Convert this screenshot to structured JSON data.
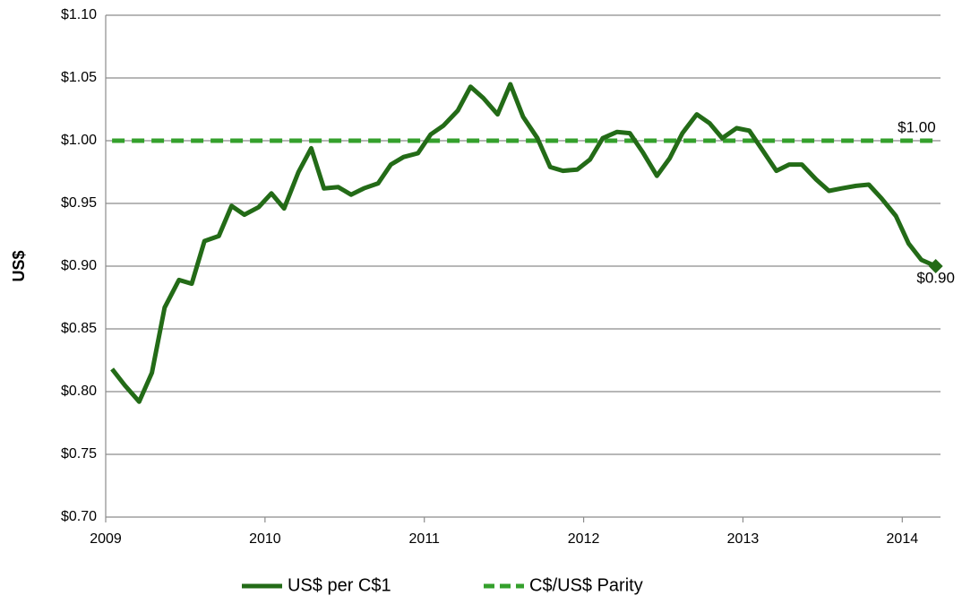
{
  "chart_data": {
    "type": "line",
    "y_label": "US$",
    "x": [
      2009.04,
      2009.12,
      2009.21,
      2009.29,
      2009.37,
      2009.46,
      2009.54,
      2009.62,
      2009.71,
      2009.79,
      2009.87,
      2009.96,
      2010.04,
      2010.12,
      2010.21,
      2010.29,
      2010.37,
      2010.46,
      2010.54,
      2010.62,
      2010.71,
      2010.79,
      2010.87,
      2010.96,
      2011.04,
      2011.12,
      2011.21,
      2011.29,
      2011.37,
      2011.46,
      2011.54,
      2011.62,
      2011.71,
      2011.79,
      2011.87,
      2011.96,
      2012.04,
      2012.12,
      2012.21,
      2012.29,
      2012.37,
      2012.46,
      2012.54,
      2012.62,
      2012.71,
      2012.79,
      2012.87,
      2012.96,
      2013.04,
      2013.12,
      2013.21,
      2013.29,
      2013.37,
      2013.46,
      2013.54,
      2013.62,
      2013.71,
      2013.79,
      2013.87,
      2013.96,
      2014.04,
      2014.12,
      2014.21
    ],
    "series": [
      {
        "name": "US$ per C$1",
        "color": "#236b17",
        "dash": false,
        "end_marker": "diamond",
        "end_label": "$0.90",
        "values": [
          0.818,
          0.805,
          0.792,
          0.815,
          0.867,
          0.889,
          0.886,
          0.92,
          0.924,
          0.948,
          0.941,
          0.947,
          0.958,
          0.946,
          0.975,
          0.994,
          0.962,
          0.963,
          0.957,
          0.962,
          0.966,
          0.981,
          0.987,
          0.99,
          1.005,
          1.012,
          1.024,
          1.043,
          1.034,
          1.021,
          1.045,
          1.019,
          1.002,
          0.979,
          0.976,
          0.977,
          0.985,
          1.002,
          1.007,
          1.006,
          0.991,
          0.972,
          0.986,
          1.006,
          1.021,
          1.014,
          1.002,
          1.01,
          1.008,
          0.993,
          0.976,
          0.981,
          0.981,
          0.969,
          0.96,
          0.962,
          0.964,
          0.965,
          0.954,
          0.94,
          0.918,
          0.905,
          0.9
        ]
      },
      {
        "name": "C$/US$ Parity",
        "color": "#34a02c",
        "dash": true,
        "end_label": "$1.00",
        "values": [
          1,
          1,
          1,
          1,
          1,
          1,
          1,
          1,
          1,
          1,
          1,
          1,
          1,
          1,
          1,
          1,
          1,
          1,
          1,
          1,
          1,
          1,
          1,
          1,
          1,
          1,
          1,
          1,
          1,
          1,
          1,
          1,
          1,
          1,
          1,
          1,
          1,
          1,
          1,
          1,
          1,
          1,
          1,
          1,
          1,
          1,
          1,
          1,
          1,
          1,
          1,
          1,
          1,
          1,
          1,
          1,
          1,
          1,
          1,
          1,
          1,
          1,
          1
        ]
      }
    ],
    "xlim": [
      2009,
      2014.24
    ],
    "xticks": [
      2009,
      2010,
      2011,
      2012,
      2013,
      2014
    ],
    "ylim": [
      0.7,
      1.1
    ],
    "yticks": [
      {
        "value": 0.7,
        "label": "$0.70"
      },
      {
        "value": 0.75,
        "label": "$0.75"
      },
      {
        "value": 0.8,
        "label": "$0.80"
      },
      {
        "value": 0.85,
        "label": "$0.85"
      },
      {
        "value": 0.9,
        "label": "$0.90"
      },
      {
        "value": 0.95,
        "label": "$0.95"
      },
      {
        "value": 1.0,
        "label": "$1.00"
      },
      {
        "value": 1.05,
        "label": "$1.05"
      },
      {
        "value": 1.1,
        "label": "$1.10"
      }
    ],
    "grid": true,
    "legend": "bottom"
  }
}
